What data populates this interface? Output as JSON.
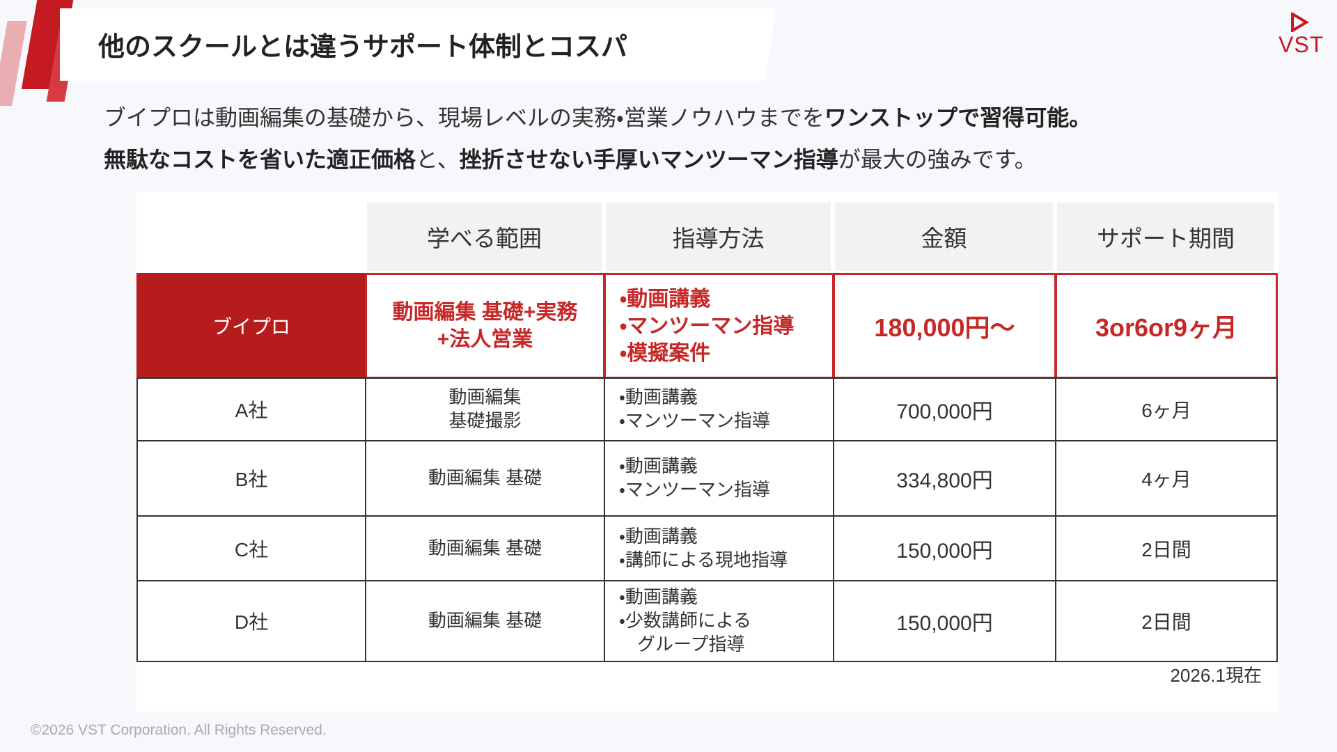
{
  "header": {
    "title": "他のスクールとは違うサポート体制とコスパ",
    "logo": "VST"
  },
  "intro": [
    [
      {
        "text": "ブイプロは動画編集の基礎から、現場レベルの実務・営業ノウハウまでを",
        "bold": false
      },
      {
        "text": "ワンストップで習得可能。",
        "bold": true
      }
    ],
    [
      {
        "text": "無駄なコストを省いた適正価格",
        "bold": true
      },
      {
        "text": "と、",
        "bold": false
      },
      {
        "text": "挫折させない手厚いマンツーマン指導",
        "bold": true
      },
      {
        "text": "が最大の強みです。",
        "bold": false
      }
    ]
  ],
  "table": {
    "headers": [
      "学べる範囲",
      "指導方法",
      "金額",
      "サポート期間"
    ],
    "rows": [
      {
        "name": "ブイプロ",
        "scope": [
          "動画編集 基礎+実務",
          "+法人営業"
        ],
        "method": [
          "・動画講義",
          "・マンツーマン指導",
          "・模擬案件"
        ],
        "price": "180,000円〜",
        "period": "3or6or9ヶ月"
      },
      {
        "name": "A社",
        "scope": [
          "動画編集",
          "基礎撮影"
        ],
        "method": [
          "・動画講義",
          "・マンツーマン指導"
        ],
        "price": "700,000円",
        "period": "6ヶ月"
      },
      {
        "name": "B社",
        "scope": [
          "動画編集 基礎"
        ],
        "method": [
          "・動画講義",
          "・マンツーマン指導"
        ],
        "price": "334,800円",
        "period": "4ヶ月"
      },
      {
        "name": "C社",
        "scope": [
          "動画編集 基礎"
        ],
        "method": [
          "・動画講義",
          "・講師による現地指導"
        ],
        "price": "150,000円",
        "period": "2日間"
      },
      {
        "name": "D社",
        "scope": [
          "動画編集 基礎"
        ],
        "method": [
          "・動画講義",
          "・少数講師による",
          "　グループ指導"
        ],
        "price": "150,000円",
        "period": "2日間"
      }
    ],
    "note": "2026.1現在"
  },
  "footer": "©2026  VST Corporation. All Rights Reserved."
}
